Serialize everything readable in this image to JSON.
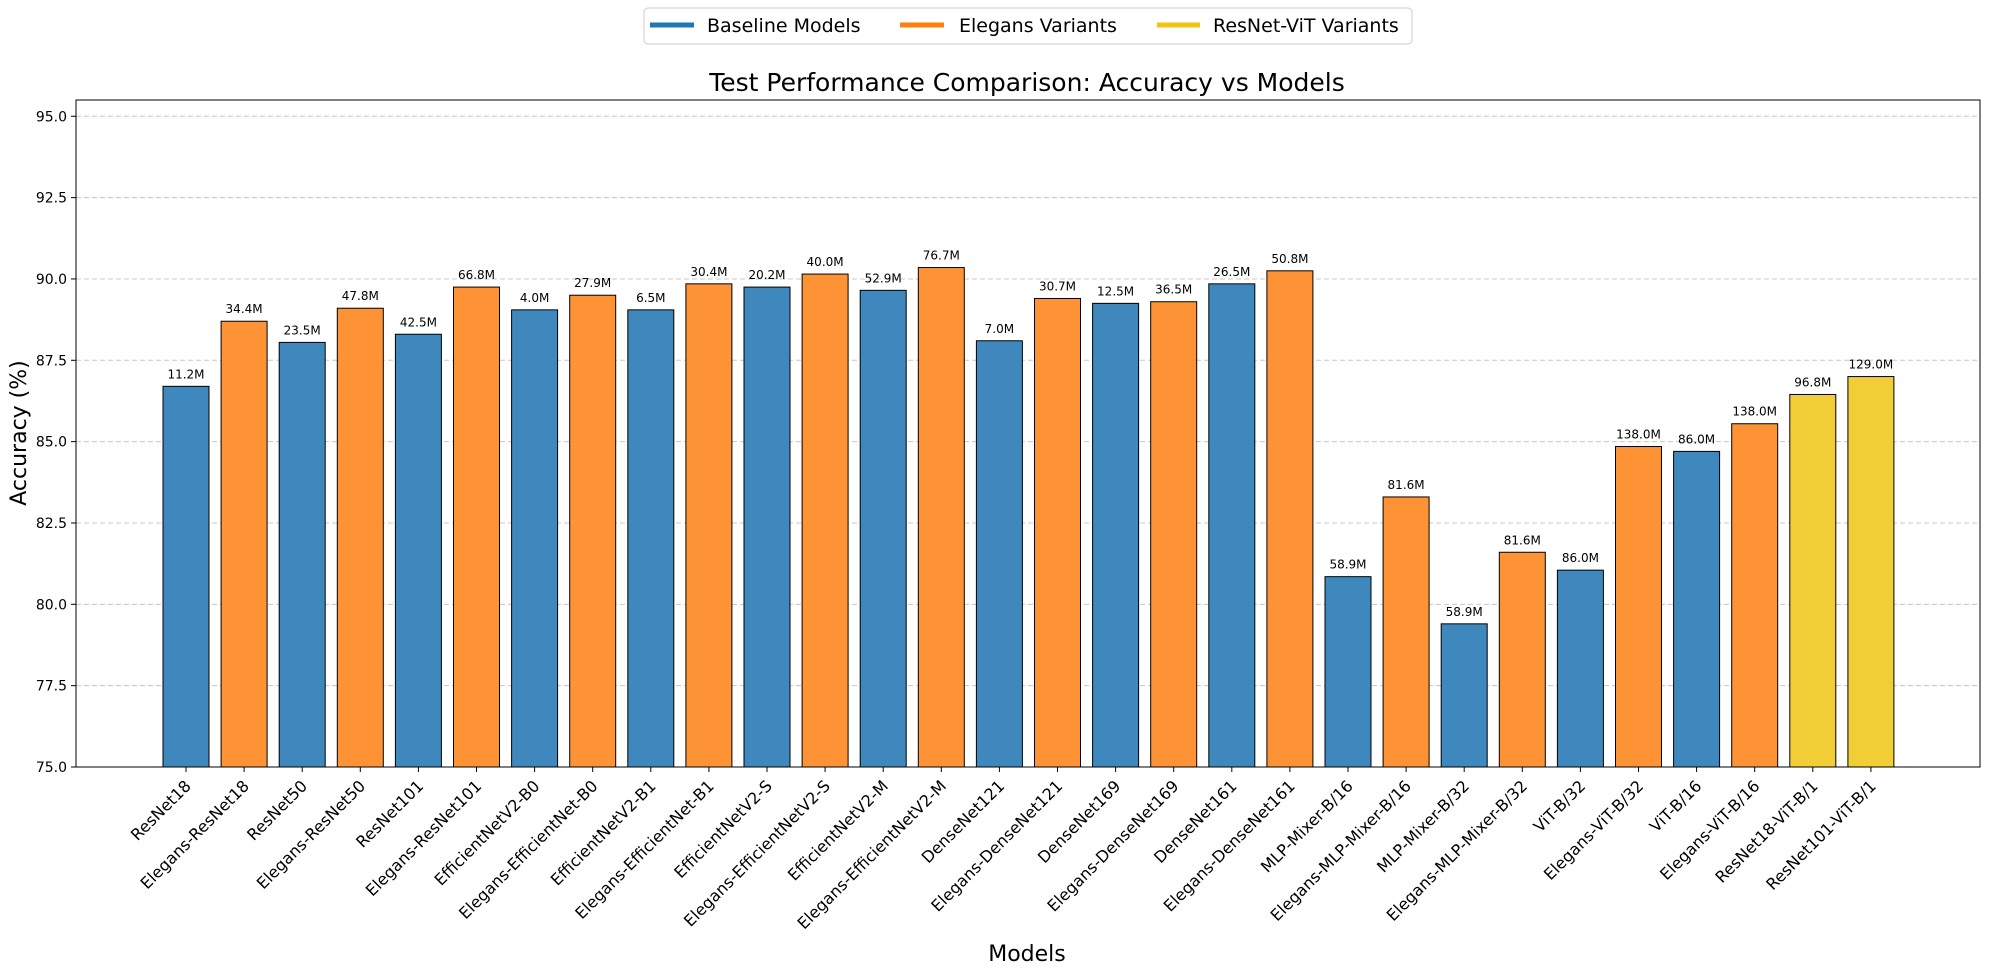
{
  "chart_data": {
    "type": "bar",
    "title": "Test Performance Comparison: Accuracy vs Models",
    "xlabel": "Models",
    "ylabel": "Accuracy (%)",
    "ylim": [
      75,
      95.5
    ],
    "yticks": [
      75.0,
      77.5,
      80.0,
      82.5,
      85.0,
      87.5,
      90.0,
      92.5,
      95.0
    ],
    "ytick_labels": [
      "75.0",
      "77.5",
      "80.0",
      "82.5",
      "85.0",
      "87.5",
      "90.0",
      "92.5",
      "95.0"
    ],
    "grid": "horizontal dashed",
    "legend_position": "top-center",
    "legend": [
      {
        "name": "Baseline Models",
        "color": "#1f77b4"
      },
      {
        "name": "Elegans Variants",
        "color": "#ff7f0e"
      },
      {
        "name": "ResNet-ViT Variants",
        "color": "#f1c40f"
      }
    ],
    "group_colors": {
      "baseline": "#3f88bd",
      "elegans": "#fe9335",
      "resnetvit": "#f2ce36"
    },
    "categories": [
      "ResNet18",
      "Elegans-ResNet18",
      "ResNet50",
      "Elegans-ResNet50",
      "ResNet101",
      "Elegans-ResNet101",
      "EfficientNetV2-B0",
      "Elegans-EfficientNet-B0",
      "EfficientNetV2-B1",
      "Elegans-EfficientNet-B1",
      "EfficientNetV2-S",
      "Elegans-EfficientNetV2-S",
      "EfficientNetV2-M",
      "Elegans-EfficientNetV2-M",
      "DenseNet121",
      "Elegans-DenseNet121",
      "DenseNet169",
      "Elegans-DenseNet169",
      "DenseNet161",
      "Elegans-DenseNet161",
      "MLP-Mixer-B/16",
      "Elegans-MLP-Mixer-B/16",
      "MLP-Mixer-B/32",
      "Elegans-MLP-Mixer-B/32",
      "ViT-B/32",
      "Elegans-ViT-B/32",
      "ViT-B/16",
      "Elegans-ViT-B/16",
      "ResNet18-ViT-B/1",
      "ResNet101-ViT-B/1"
    ],
    "values": [
      86.7,
      88.7,
      88.05,
      89.1,
      88.3,
      89.75,
      89.05,
      89.5,
      89.05,
      89.85,
      89.75,
      90.15,
      89.65,
      90.35,
      88.1,
      89.4,
      89.25,
      89.3,
      89.85,
      90.25,
      80.85,
      83.3,
      79.4,
      81.6,
      81.05,
      84.85,
      84.7,
      85.55,
      86.45,
      87.0
    ],
    "groups": [
      "baseline",
      "elegans",
      "baseline",
      "elegans",
      "baseline",
      "elegans",
      "baseline",
      "elegans",
      "baseline",
      "elegans",
      "baseline",
      "elegans",
      "baseline",
      "elegans",
      "baseline",
      "elegans",
      "baseline",
      "elegans",
      "baseline",
      "elegans",
      "baseline",
      "elegans",
      "baseline",
      "elegans",
      "baseline",
      "elegans",
      "baseline",
      "elegans",
      "resnetvit",
      "resnetvit"
    ],
    "data_labels": [
      "11.2M",
      "34.4M",
      "23.5M",
      "47.8M",
      "42.5M",
      "66.8M",
      "4.0M",
      "27.9M",
      "6.5M",
      "30.4M",
      "20.2M",
      "40.0M",
      "52.9M",
      "76.7M",
      "7.0M",
      "30.7M",
      "12.5M",
      "36.5M",
      "26.5M",
      "50.8M",
      "58.9M",
      "81.6M",
      "58.9M",
      "81.6M",
      "86.0M",
      "138.0M",
      "86.0M",
      "138.0M",
      "96.8M",
      "129.0M"
    ]
  }
}
